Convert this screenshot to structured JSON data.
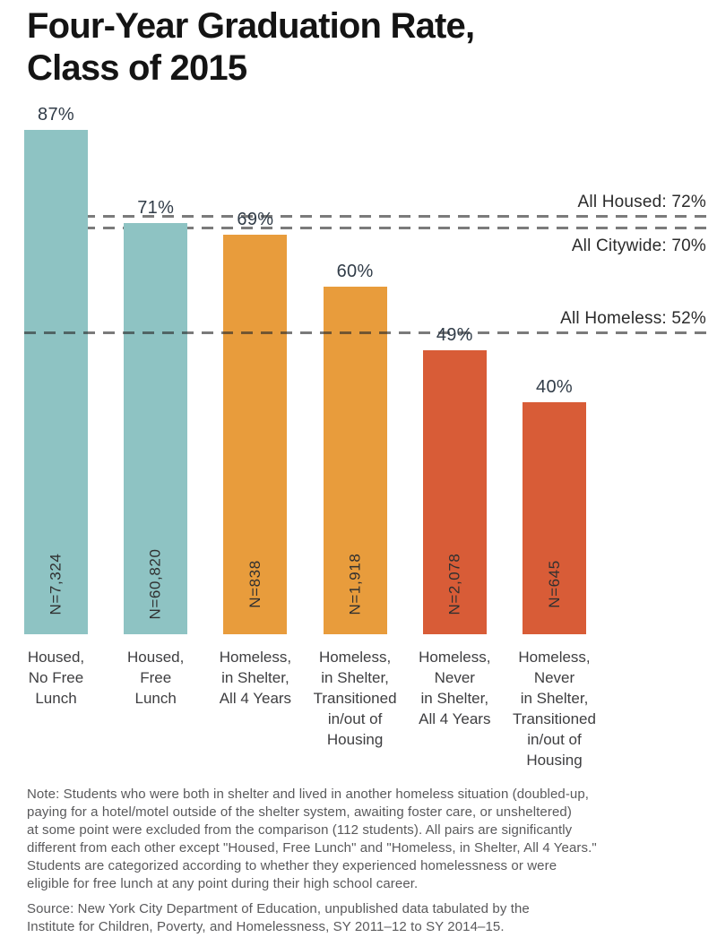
{
  "title": "Four-Year Graduation Rate,\nClass of 2015",
  "chart_data": {
    "type": "bar",
    "title": "Four-Year Graduation Rate, Class of 2015",
    "categories": [
      "Housed,\nNo Free\nLunch",
      "Housed,\nFree\nLunch",
      "Homeless,\nin Shelter,\nAll 4 Years",
      "Homeless,\nin Shelter,\nTransitioned\nin/out of\nHousing",
      "Homeless,\nNever\nin Shelter,\nAll 4 Years",
      "Homeless,\nNever\nin Shelter,\nTransitioned\nin/out of\nHousing"
    ],
    "values": [
      87,
      71,
      69,
      60,
      49,
      40
    ],
    "value_labels": [
      "87%",
      "71%",
      "69%",
      "60%",
      "49%",
      "40%"
    ],
    "n_labels": [
      "N=7,324",
      "N=60,820",
      "N=838",
      "N=1,918",
      "N=2,078",
      "N=645"
    ],
    "bar_colors": [
      "#8ec3c3",
      "#8ec3c3",
      "#e89c3c",
      "#e89c3c",
      "#d85c37",
      "#d85c37"
    ],
    "reference_lines": [
      {
        "label": "All Housed: 72%",
        "value": 72,
        "label_position": "above",
        "over_bars": false
      },
      {
        "label": "All Citywide: 70%",
        "value": 70,
        "label_position": "below",
        "over_bars": false
      },
      {
        "label": "All Homeless: 52%",
        "value": 52,
        "label_position": "above",
        "over_bars": true
      }
    ],
    "ylim": [
      0,
      91
    ],
    "grid": false,
    "legend": false
  },
  "note": "Note: Students who were both in shelter and lived in another homeless situation (doubled-up,\npaying for a hotel/motel outside of the shelter system, awaiting foster care, or unsheltered)\nat some point were excluded from the comparison (112 students). All pairs are significantly\ndifferent from each other except \"Housed, Free Lunch\" and \"Homeless, in Shelter, All 4 Years.\"\nStudents are categorized according to whether they experienced homelessness or were\neligible for free lunch at any point during their high school career.",
  "source": "Source: New York City Department of Education, unpublished data tabulated by the\nInstitute for Children, Poverty, and Homelessness, SY 2011–12 to SY 2014–15."
}
